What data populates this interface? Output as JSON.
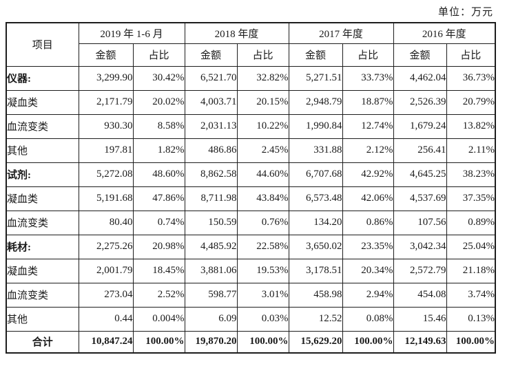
{
  "unit_label": "单位：万元",
  "table": {
    "item_header": "项目",
    "col_groups": [
      {
        "label": "2019 年 1-6 月"
      },
      {
        "label": "2018 年度"
      },
      {
        "label": "2017 年度"
      },
      {
        "label": "2016 年度"
      }
    ],
    "sub_headers": [
      "金额",
      "占比"
    ],
    "rows": [
      {
        "label": "仪器:",
        "section": true,
        "total": false,
        "cells": [
          "3,299.90",
          "30.42%",
          "6,521.70",
          "32.82%",
          "5,271.51",
          "33.73%",
          "4,462.04",
          "36.73%"
        ]
      },
      {
        "label": "凝血类",
        "section": false,
        "total": false,
        "cells": [
          "2,171.79",
          "20.02%",
          "4,003.71",
          "20.15%",
          "2,948.79",
          "18.87%",
          "2,526.39",
          "20.79%"
        ]
      },
      {
        "label": "血流变类",
        "section": false,
        "total": false,
        "cells": [
          "930.30",
          "8.58%",
          "2,031.13",
          "10.22%",
          "1,990.84",
          "12.74%",
          "1,679.24",
          "13.82%"
        ]
      },
      {
        "label": "其他",
        "section": false,
        "total": false,
        "cells": [
          "197.81",
          "1.82%",
          "486.86",
          "2.45%",
          "331.88",
          "2.12%",
          "256.41",
          "2.11%"
        ]
      },
      {
        "label": "试剂:",
        "section": true,
        "total": false,
        "cells": [
          "5,272.08",
          "48.60%",
          "8,862.58",
          "44.60%",
          "6,707.68",
          "42.92%",
          "4,645.25",
          "38.23%"
        ]
      },
      {
        "label": "凝血类",
        "section": false,
        "total": false,
        "cells": [
          "5,191.68",
          "47.86%",
          "8,711.98",
          "43.84%",
          "6,573.48",
          "42.06%",
          "4,537.69",
          "37.35%"
        ]
      },
      {
        "label": "血流变类",
        "section": false,
        "total": false,
        "cells": [
          "80.40",
          "0.74%",
          "150.59",
          "0.76%",
          "134.20",
          "0.86%",
          "107.56",
          "0.89%"
        ]
      },
      {
        "label": "耗材:",
        "section": true,
        "total": false,
        "cells": [
          "2,275.26",
          "20.98%",
          "4,485.92",
          "22.58%",
          "3,650.02",
          "23.35%",
          "3,042.34",
          "25.04%"
        ]
      },
      {
        "label": "凝血类",
        "section": false,
        "total": false,
        "cells": [
          "2,001.79",
          "18.45%",
          "3,881.06",
          "19.53%",
          "3,178.51",
          "20.34%",
          "2,572.79",
          "21.18%"
        ]
      },
      {
        "label": "血流变类",
        "section": false,
        "total": false,
        "cells": [
          "273.04",
          "2.52%",
          "598.77",
          "3.01%",
          "458.98",
          "2.94%",
          "454.08",
          "3.74%"
        ]
      },
      {
        "label": "其他",
        "section": false,
        "total": false,
        "cells": [
          "0.44",
          "0.004%",
          "6.09",
          "0.03%",
          "12.52",
          "0.08%",
          "15.46",
          "0.13%"
        ]
      },
      {
        "label": "合计",
        "section": false,
        "total": true,
        "cells": [
          "10,847.24",
          "100.00%",
          "19,870.20",
          "100.00%",
          "15,629.20",
          "100.00%",
          "12,149.63",
          "100.00%"
        ]
      }
    ]
  }
}
